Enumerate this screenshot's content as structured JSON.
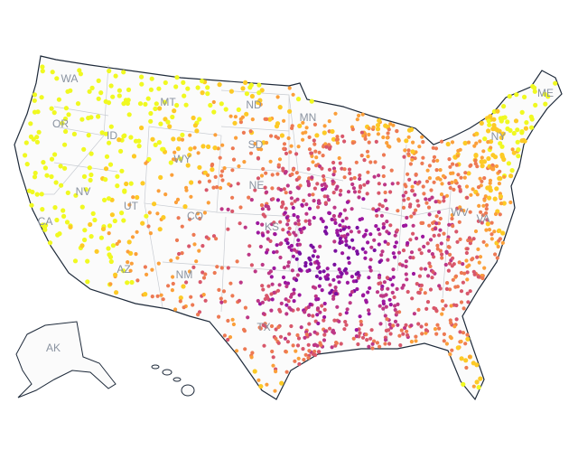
{
  "labels": [
    "WA",
    "OR",
    "ID",
    "MT",
    "ND",
    "MN",
    "SD",
    "WY",
    "NV",
    "UT",
    "CO",
    "NE",
    "KS",
    "CA",
    "AZ",
    "NM",
    "TX",
    "NY",
    "ME",
    "WV",
    "VA",
    "AK"
  ]
}
